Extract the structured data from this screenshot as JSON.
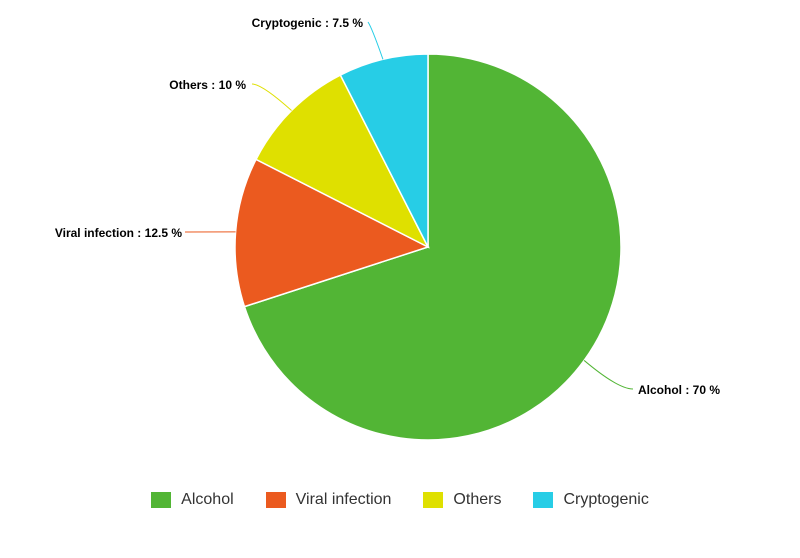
{
  "chart_data": {
    "type": "pie",
    "title": "",
    "categories": [
      "Alcohol",
      "Viral infection",
      "Others",
      "Cryptogenic"
    ],
    "values": [
      70,
      12.5,
      10,
      7.5
    ],
    "unit": "%",
    "slice_labels": [
      "Alcohol : 70 %",
      "Viral infection : 12.5 %",
      "Others : 10 %",
      "Cryptogenic : 7.5 %"
    ],
    "colors": [
      "#52b535",
      "#eb5a1f",
      "#dfe000",
      "#27cde6"
    ],
    "start": "12 o'clock",
    "direction": "clockwise",
    "legend_placement": "bottom-center"
  },
  "legend": {
    "items": [
      {
        "label": "Alcohol",
        "color": "#52b535"
      },
      {
        "label": "Viral infection",
        "color": "#eb5a1f"
      },
      {
        "label": "Others",
        "color": "#dfe000"
      },
      {
        "label": "Cryptogenic",
        "color": "#27cde6"
      }
    ]
  }
}
